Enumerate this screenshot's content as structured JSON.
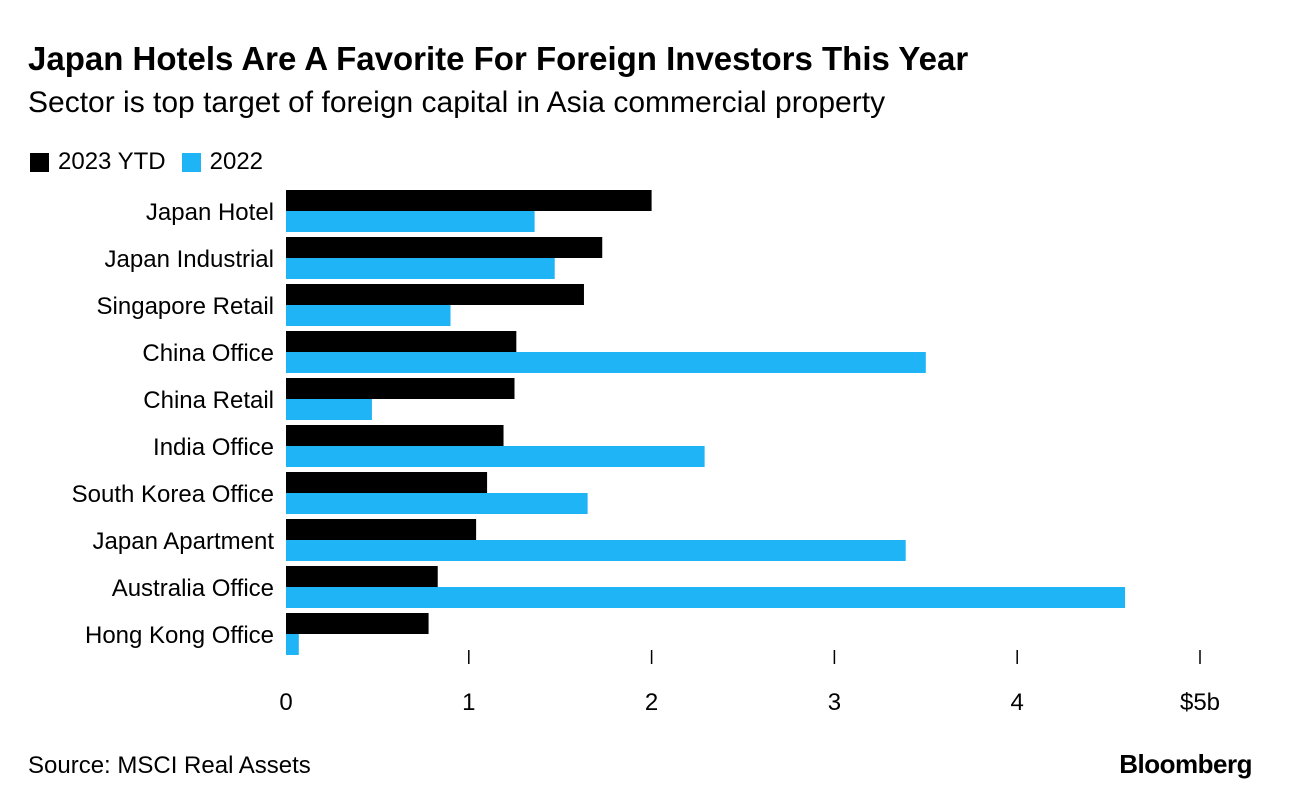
{
  "chart_data": {
    "type": "bar",
    "orientation": "horizontal",
    "title": "Japan Hotels Are A Favorite For Foreign Investors This Year",
    "subtitle": "Sector is top target of foreign capital in Asia commercial property",
    "categories": [
      "Japan Hotel",
      "Japan Industrial",
      "Singapore Retail",
      "China Office",
      "China Retail",
      "India Office",
      "South Korea Office",
      "Japan Apartment",
      "Australia Office",
      "Hong Kong Office"
    ],
    "series": [
      {
        "name": "2023 YTD",
        "color": "#000000",
        "values": [
          2.0,
          1.73,
          1.63,
          1.26,
          1.25,
          1.19,
          1.1,
          1.04,
          0.83,
          0.78
        ]
      },
      {
        "name": "2022",
        "color": "#1eb4f5",
        "values": [
          1.36,
          1.47,
          0.9,
          3.5,
          0.47,
          2.29,
          1.65,
          3.39,
          4.59,
          0.07
        ]
      }
    ],
    "xlim": [
      0,
      5
    ],
    "xticks": [
      {
        "value": 0,
        "label": "0"
      },
      {
        "value": 1,
        "label": "1"
      },
      {
        "value": 2,
        "label": "2"
      },
      {
        "value": 3,
        "label": "3"
      },
      {
        "value": 4,
        "label": "4"
      },
      {
        "value": 5,
        "label": "$5b"
      }
    ],
    "legend_position": "top-left"
  },
  "footer": {
    "source": "Source: MSCI Real Assets",
    "brand": "Bloomberg"
  }
}
